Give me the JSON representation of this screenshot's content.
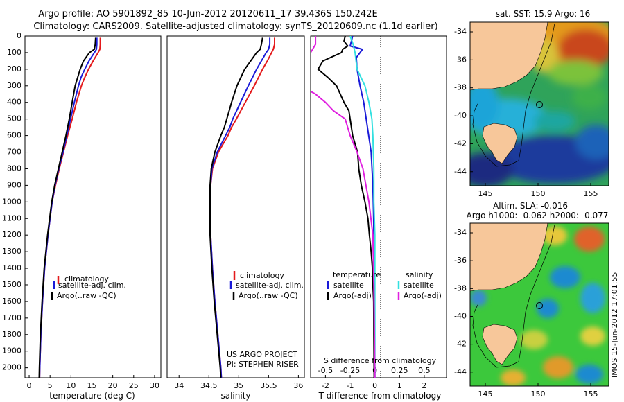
{
  "header": {
    "line1": "Argo profile: AO 5901892_85 10-Jun-2012 20120611_17 39.436S 150.242E",
    "line2": "Climatology: CARS2009. Satellite-adjusted climatology: synTS_20120609.nc (1.1d earlier)"
  },
  "colors": {
    "climatology": "#e41a1c",
    "satellite": "#1a1ad8",
    "argo": "#000000",
    "salinity_satellite": "#33e0e0",
    "salinity_argo": "#e020e0",
    "land": "#f7c79a"
  },
  "chart_data": [
    {
      "type": "line",
      "id": "temperature",
      "xlabel": "temperature (deg C)",
      "ylabel": "",
      "xlim": [
        -1,
        31.5
      ],
      "ylim": [
        0,
        2060
      ],
      "y_reversed": true,
      "xticks": [
        0,
        5,
        10,
        15,
        20,
        25,
        30
      ],
      "yticks": [
        0,
        100,
        200,
        300,
        400,
        500,
        600,
        700,
        800,
        900,
        1000,
        1100,
        1200,
        1300,
        1400,
        1500,
        1600,
        1700,
        1800,
        1900,
        2000
      ],
      "legend": [
        "climatology",
        "satellite-adj. clim.",
        "Argo(..raw -QC)"
      ],
      "series": [
        {
          "name": "climatology",
          "color": "climatology",
          "depth": [
            10,
            50,
            80,
            100,
            150,
            200,
            250,
            300,
            400,
            500,
            600,
            700,
            800,
            900,
            1000,
            1200,
            1400,
            1600,
            1800,
            2000,
            2060
          ],
          "values": [
            17.0,
            17.0,
            16.9,
            16.5,
            15.3,
            14.2,
            13.3,
            12.5,
            11.3,
            10.3,
            9.2,
            8.2,
            7.2,
            6.3,
            5.5,
            4.5,
            3.7,
            3.2,
            2.8,
            2.55,
            2.5
          ]
        },
        {
          "name": "satellite-adj. clim.",
          "color": "satellite",
          "depth": [
            10,
            50,
            80,
            100,
            150,
            200,
            250,
            300,
            400,
            500,
            600,
            700,
            800,
            900,
            1000,
            1200,
            1400,
            1600,
            1800,
            2000,
            2060
          ],
          "values": [
            16.2,
            16.2,
            16.1,
            15.6,
            14.3,
            13.3,
            12.4,
            11.8,
            10.8,
            9.9,
            9.0,
            8.1,
            7.1,
            6.2,
            5.5,
            4.5,
            3.7,
            3.2,
            2.8,
            2.55,
            2.5
          ]
        },
        {
          "name": "Argo(..raw -QC)",
          "color": "argo",
          "depth": [
            10,
            50,
            80,
            100,
            150,
            200,
            250,
            300,
            400,
            500,
            600,
            700,
            800,
            900,
            1000,
            1200,
            1400,
            1600,
            1800,
            2000,
            2060
          ],
          "values": [
            15.9,
            15.8,
            15.6,
            14.4,
            13.0,
            12.2,
            11.6,
            11.0,
            10.3,
            9.6,
            8.8,
            7.9,
            7.0,
            6.1,
            5.4,
            4.4,
            3.6,
            3.1,
            2.7,
            2.45,
            2.4
          ]
        }
      ]
    },
    {
      "type": "line",
      "id": "salinity",
      "xlabel": "salinity",
      "ylabel": "",
      "xlim": [
        33.8,
        36.1
      ],
      "ylim": [
        0,
        2060
      ],
      "y_reversed": true,
      "xticks": [
        34,
        34.5,
        35,
        35.5,
        36
      ],
      "xticklabels": [
        "34",
        "34.5",
        "35",
        "35.5",
        "36"
      ],
      "legend": [
        "climatology",
        "satellite-adj. clim.",
        "Argo(..raw -QC)"
      ],
      "annotations": [
        "US ARGO PROJECT",
        "PI: STEPHEN RISER"
      ],
      "series": [
        {
          "name": "climatology",
          "color": "climatology",
          "depth": [
            10,
            50,
            80,
            100,
            150,
            200,
            300,
            400,
            500,
            550,
            600,
            700,
            800,
            900,
            1000,
            1200,
            1400,
            1600,
            1800,
            2000,
            2060
          ],
          "values": [
            35.6,
            35.6,
            35.58,
            35.55,
            35.48,
            35.4,
            35.26,
            35.11,
            34.96,
            34.88,
            34.82,
            34.66,
            34.56,
            34.53,
            34.52,
            34.53,
            34.56,
            34.6,
            34.65,
            34.7,
            34.71
          ]
        },
        {
          "name": "satellite-adj. clim.",
          "color": "satellite",
          "depth": [
            10,
            50,
            80,
            100,
            150,
            200,
            300,
            400,
            500,
            550,
            600,
            700,
            800,
            900,
            1000,
            1200,
            1400,
            1600,
            1800,
            2000,
            2060
          ],
          "values": [
            35.52,
            35.52,
            35.5,
            35.46,
            35.38,
            35.3,
            35.16,
            35.03,
            34.9,
            34.85,
            34.78,
            34.64,
            34.55,
            34.53,
            34.52,
            34.53,
            34.56,
            34.6,
            34.65,
            34.7,
            34.71
          ]
        },
        {
          "name": "Argo(..raw -QC)",
          "color": "argo",
          "depth": [
            10,
            50,
            80,
            100,
            150,
            200,
            300,
            400,
            500,
            550,
            600,
            700,
            800,
            900,
            1000,
            1200,
            1400,
            1600,
            1800,
            2000,
            2060
          ],
          "values": [
            35.4,
            35.38,
            35.36,
            35.3,
            35.2,
            35.1,
            34.97,
            34.88,
            34.8,
            34.76,
            34.7,
            34.6,
            34.54,
            34.52,
            34.52,
            34.52,
            34.55,
            34.59,
            34.64,
            34.69,
            34.7
          ]
        }
      ]
    },
    {
      "type": "line",
      "id": "difference",
      "xlabel": "T difference from climatology",
      "xlabel2": "S difference from climatology",
      "xlim": [
        -2.6,
        2.9
      ],
      "ylim": [
        0,
        2060
      ],
      "y_reversed": true,
      "xticks": [
        -2,
        -1,
        0,
        1,
        2
      ],
      "xticks_S": [
        -0.5,
        -0.25,
        0,
        0.25,
        0.5
      ],
      "xticklabels_S": [
        "-0.5",
        "-0.25",
        "0",
        "0.25",
        "0.5"
      ],
      "legend_temperature": {
        "title": "temperature",
        "items": [
          "satellite",
          "Argo(-adj)"
        ]
      },
      "legend_salinity": {
        "title": "salinity",
        "items": [
          "satellite",
          "Argo(-adj)"
        ]
      },
      "series": [
        {
          "name": "T satellite",
          "color": "satellite",
          "depth": [
            0,
            30,
            60,
            80,
            100,
            130,
            200,
            300,
            400,
            500,
            700,
            900,
            1100,
            1400,
            1700,
            2060
          ],
          "values": [
            -0.9,
            -0.95,
            -1.0,
            -0.5,
            -0.6,
            -0.75,
            -0.72,
            -0.6,
            -0.45,
            -0.35,
            -0.15,
            -0.08,
            -0.05,
            -0.03,
            -0.02,
            0
          ]
        },
        {
          "name": "T Argo(-adj)",
          "color": "argo",
          "depth": [
            0,
            30,
            60,
            80,
            100,
            150,
            200,
            250,
            300,
            350,
            400,
            450,
            500,
            600,
            700,
            800,
            900,
            1000,
            1100,
            1200,
            1300,
            1400,
            1500,
            1600,
            1800,
            2060
          ],
          "values": [
            -1.2,
            -1.25,
            -1.1,
            -1.3,
            -1.35,
            -2.1,
            -2.3,
            -1.9,
            -1.55,
            -1.4,
            -1.25,
            -1.05,
            -1.0,
            -0.9,
            -0.7,
            -0.65,
            -0.55,
            -0.4,
            -0.28,
            -0.22,
            -0.15,
            -0.1,
            -0.08,
            -0.05,
            -0.04,
            -0.03
          ]
        },
        {
          "name": "S satellite",
          "color": "salinity_satellite",
          "depth": [
            0,
            50,
            100,
            200,
            300,
            400,
            500,
            600,
            800,
            1000,
            1200,
            1500,
            2060
          ],
          "values": [
            -0.25,
            -0.22,
            -0.2,
            -0.18,
            -0.1,
            -0.06,
            -0.03,
            -0.02,
            -0.01,
            -0.01,
            0,
            0,
            0
          ]
        },
        {
          "name": "S Argo(-adj)",
          "color": "salinity_argo",
          "depth": [
            0,
            50,
            100,
            150,
            200,
            250,
            300,
            350,
            400,
            450,
            500,
            600,
            700,
            800,
            1000,
            1200,
            1500,
            2060
          ],
          "values": [
            -0.6,
            -0.6,
            -0.65,
            -0.72,
            -0.75,
            -0.8,
            -0.75,
            -0.6,
            -0.5,
            -0.42,
            -0.3,
            -0.25,
            -0.18,
            -0.12,
            -0.06,
            -0.02,
            -0.01,
            0
          ]
        }
      ]
    }
  ],
  "maps": {
    "sst": {
      "title": "sat. SST: 15.9 Argo: 16",
      "yticks": [
        "-34",
        "-36",
        "-38",
        "-40",
        "-42",
        "-44"
      ],
      "xticks": [
        "145",
        "150",
        "155"
      ]
    },
    "sla": {
      "title1": "Altim. SLA: -0.016",
      "title2": "Argo h1000: -0.062 h2000: -0.077",
      "yticks": [
        "-34",
        "-36",
        "-38",
        "-40",
        "-42",
        "-44"
      ],
      "xticks": [
        "145",
        "150",
        "155"
      ]
    },
    "credit": "IMOS 15-Jun-2012 17:01:55"
  }
}
